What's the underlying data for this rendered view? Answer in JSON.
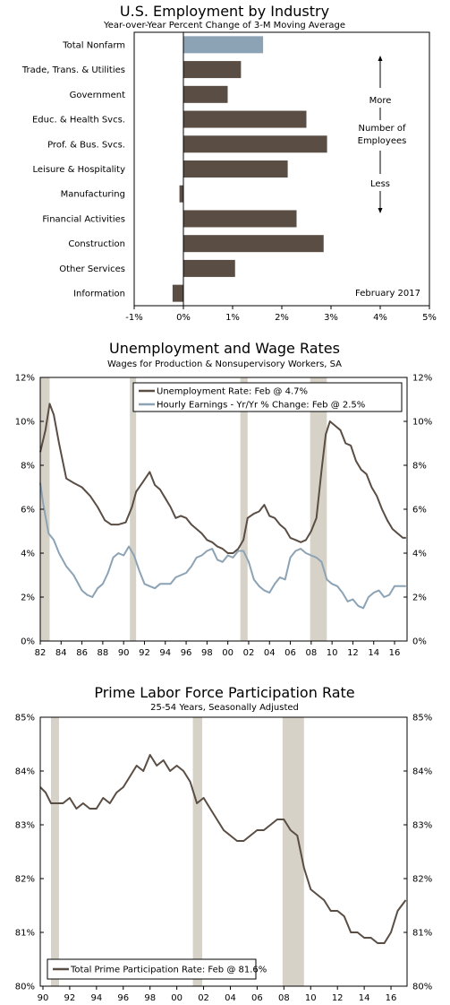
{
  "colors": {
    "bar_dark": "#5a4d44",
    "bar_highlight": "#8ca3b5",
    "line_dark": "#5a4d44",
    "line_blue": "#8ca3b5",
    "recession": "#d7d2c7",
    "axis": "#000000"
  },
  "chart_data": [
    {
      "type": "bar",
      "title": "U.S. Employment by Industry",
      "subtitle": "Year-over-Year Percent Change of 3-M Moving Average",
      "orientation": "horizontal",
      "categories": [
        "Total Nonfarm",
        "Trade, Trans. & Utilities",
        "Government",
        "Educ. & Health Svcs.",
        "Prof. & Bus. Svcs.",
        "Leisure & Hospitality",
        "Manufacturing",
        "Financial Activities",
        "Construction",
        "Other Services",
        "Information"
      ],
      "values": [
        1.62,
        1.17,
        0.9,
        2.5,
        2.92,
        2.12,
        -0.08,
        2.3,
        2.85,
        1.05,
        -0.22
      ],
      "highlight_index": 0,
      "xlim": [
        -1,
        5
      ],
      "x_ticks": [
        -1,
        0,
        1,
        2,
        3,
        4,
        5
      ],
      "x_tick_labels": [
        "-1%",
        "0%",
        "1%",
        "2%",
        "3%",
        "4%",
        "5%"
      ],
      "annotations": {
        "more": "More",
        "middle_line1": "Number of",
        "middle_line2": "Employees",
        "less": "Less",
        "date": "February 2017"
      },
      "grid": false
    },
    {
      "type": "line",
      "title": "Unemployment and Wage Rates",
      "subtitle": "Wages for Production & Nonsupervisory Workers, SA",
      "xlim": [
        1982,
        2017.2
      ],
      "ylim": [
        0,
        12
      ],
      "y_ticks": [
        0,
        2,
        4,
        6,
        8,
        10,
        12
      ],
      "y_tick_labels": [
        "0%",
        "2%",
        "4%",
        "6%",
        "8%",
        "10%",
        "12%"
      ],
      "x_ticks": [
        1982,
        1984,
        1986,
        1988,
        1990,
        1992,
        1994,
        1996,
        1998,
        2000,
        2002,
        2004,
        2006,
        2008,
        2010,
        2012,
        2014,
        2016
      ],
      "x_tick_labels": [
        "82",
        "84",
        "86",
        "88",
        "90",
        "92",
        "94",
        "96",
        "98",
        "00",
        "02",
        "04",
        "06",
        "08",
        "10",
        "12",
        "14",
        "16"
      ],
      "recessions": [
        [
          1982.0,
          1982.9
        ],
        [
          1990.6,
          1991.2
        ],
        [
          2001.2,
          2001.9
        ],
        [
          2007.9,
          2009.5
        ]
      ],
      "legend_position": "top-right",
      "series": [
        {
          "name": "Unemployment Rate: Feb @ 4.7%",
          "color_key": "line_dark",
          "x": [
            1982.0,
            1982.5,
            1982.9,
            1983.3,
            1983.8,
            1984.5,
            1985.2,
            1986.0,
            1986.8,
            1987.5,
            1988.2,
            1988.8,
            1989.5,
            1990.2,
            1990.8,
            1991.2,
            1991.8,
            1992.5,
            1993.0,
            1993.5,
            1994.0,
            1994.5,
            1995.0,
            1995.5,
            1996.0,
            1996.5,
            1997.0,
            1997.5,
            1998.0,
            1998.5,
            1999.0,
            1999.5,
            2000.0,
            2000.5,
            2001.0,
            2001.5,
            2001.9,
            2002.5,
            2003.0,
            2003.5,
            2004.0,
            2004.5,
            2005.0,
            2005.5,
            2006.0,
            2006.5,
            2007.0,
            2007.5,
            2008.0,
            2008.5,
            2009.0,
            2009.4,
            2009.8,
            2010.3,
            2010.8,
            2011.3,
            2011.8,
            2012.3,
            2012.8,
            2013.3,
            2013.8,
            2014.3,
            2014.8,
            2015.3,
            2015.8,
            2016.3,
            2016.8,
            2017.1
          ],
          "y": [
            8.6,
            9.6,
            10.8,
            10.3,
            9.0,
            7.4,
            7.2,
            7.0,
            6.6,
            6.1,
            5.5,
            5.3,
            5.3,
            5.4,
            6.1,
            6.8,
            7.2,
            7.7,
            7.1,
            6.9,
            6.5,
            6.1,
            5.6,
            5.7,
            5.6,
            5.3,
            5.1,
            4.9,
            4.6,
            4.5,
            4.3,
            4.2,
            4.0,
            4.0,
            4.2,
            4.6,
            5.6,
            5.8,
            5.9,
            6.2,
            5.7,
            5.6,
            5.3,
            5.1,
            4.7,
            4.6,
            4.5,
            4.6,
            5.0,
            5.6,
            7.8,
            9.4,
            10.0,
            9.8,
            9.6,
            9.0,
            8.9,
            8.2,
            7.8,
            7.6,
            7.0,
            6.6,
            6.0,
            5.5,
            5.1,
            4.9,
            4.7,
            4.7
          ]
        },
        {
          "name": "Hourly Earnings - Yr/Yr % Change: Feb @ 2.5%",
          "color_key": "line_blue",
          "x": [
            1982.0,
            1982.3,
            1982.8,
            1983.3,
            1983.8,
            1984.5,
            1985.2,
            1986.0,
            1986.5,
            1987.0,
            1987.5,
            1988.0,
            1988.5,
            1989.0,
            1989.5,
            1990.0,
            1990.5,
            1991.0,
            1991.5,
            1992.0,
            1992.5,
            1993.0,
            1993.5,
            1994.0,
            1994.5,
            1995.0,
            1995.5,
            1996.0,
            1996.5,
            1997.0,
            1997.5,
            1998.0,
            1998.5,
            1999.0,
            1999.5,
            2000.0,
            2000.5,
            2001.0,
            2001.5,
            2002.0,
            2002.5,
            2003.0,
            2003.5,
            2004.0,
            2004.5,
            2005.0,
            2005.5,
            2006.0,
            2006.5,
            2007.0,
            2007.5,
            2008.0,
            2008.5,
            2009.0,
            2009.5,
            2010.0,
            2010.5,
            2011.0,
            2011.5,
            2012.0,
            2012.5,
            2013.0,
            2013.5,
            2014.0,
            2014.5,
            2015.0,
            2015.5,
            2016.0,
            2016.5,
            2017.1
          ],
          "y": [
            7.2,
            6.2,
            4.9,
            4.6,
            4.0,
            3.4,
            3.0,
            2.3,
            2.1,
            2.0,
            2.4,
            2.6,
            3.1,
            3.8,
            4.0,
            3.9,
            4.3,
            3.9,
            3.2,
            2.6,
            2.5,
            2.4,
            2.6,
            2.6,
            2.6,
            2.9,
            3.0,
            3.1,
            3.4,
            3.8,
            3.9,
            4.1,
            4.2,
            3.7,
            3.6,
            3.9,
            3.8,
            4.1,
            4.1,
            3.6,
            2.8,
            2.5,
            2.3,
            2.2,
            2.6,
            2.9,
            2.8,
            3.8,
            4.1,
            4.2,
            4.0,
            3.9,
            3.8,
            3.6,
            2.8,
            2.6,
            2.5,
            2.2,
            1.8,
            1.9,
            1.6,
            1.5,
            2.0,
            2.2,
            2.3,
            2.0,
            2.1,
            2.5,
            2.5,
            2.5
          ]
        }
      ]
    },
    {
      "type": "line",
      "title": "Prime Labor Force Participation Rate",
      "subtitle": "25-54 Years, Seasonally Adjusted",
      "xlim": [
        1989.8,
        2017.2
      ],
      "ylim": [
        80,
        85
      ],
      "y_ticks": [
        80,
        81,
        82,
        83,
        84,
        85
      ],
      "y_tick_labels": [
        "80%",
        "81%",
        "82%",
        "83%",
        "84%",
        "85%"
      ],
      "x_ticks": [
        1990,
        1992,
        1994,
        1996,
        1998,
        2000,
        2002,
        2004,
        2006,
        2008,
        2010,
        2012,
        2014,
        2016
      ],
      "x_tick_labels": [
        "90",
        "92",
        "94",
        "96",
        "98",
        "00",
        "02",
        "04",
        "06",
        "08",
        "10",
        "12",
        "14",
        "16"
      ],
      "recessions": [
        [
          1990.6,
          1991.2
        ],
        [
          2001.2,
          2001.9
        ],
        [
          2007.9,
          2009.5
        ]
      ],
      "legend_position": "bottom-left",
      "series": [
        {
          "name": "Total Prime Participation Rate: Feb @ 81.6%",
          "color_key": "line_dark",
          "x": [
            1989.8,
            1990.2,
            1990.6,
            1991.0,
            1991.5,
            1992.0,
            1992.5,
            1993.0,
            1993.5,
            1994.0,
            1994.5,
            1995.0,
            1995.5,
            1996.0,
            1996.5,
            1997.0,
            1997.5,
            1998.0,
            1998.5,
            1999.0,
            1999.5,
            2000.0,
            2000.5,
            2001.0,
            2001.5,
            2002.0,
            2002.5,
            2003.0,
            2003.5,
            2004.0,
            2004.5,
            2005.0,
            2005.5,
            2006.0,
            2006.5,
            2007.0,
            2007.5,
            2008.0,
            2008.5,
            2009.0,
            2009.5,
            2010.0,
            2010.5,
            2011.0,
            2011.5,
            2012.0,
            2012.5,
            2013.0,
            2013.5,
            2014.0,
            2014.5,
            2015.0,
            2015.5,
            2016.0,
            2016.5,
            2017.1
          ],
          "y": [
            83.7,
            83.6,
            83.4,
            83.4,
            83.4,
            83.5,
            83.3,
            83.4,
            83.3,
            83.3,
            83.5,
            83.4,
            83.6,
            83.7,
            83.9,
            84.1,
            84.0,
            84.3,
            84.1,
            84.2,
            84.0,
            84.1,
            84.0,
            83.8,
            83.4,
            83.5,
            83.3,
            83.1,
            82.9,
            82.8,
            82.7,
            82.7,
            82.8,
            82.9,
            82.9,
            83.0,
            83.1,
            83.1,
            82.9,
            82.8,
            82.2,
            81.8,
            81.7,
            81.6,
            81.4,
            81.4,
            81.3,
            81.0,
            81.0,
            80.9,
            80.9,
            80.8,
            80.8,
            81.0,
            81.4,
            81.6
          ]
        }
      ]
    }
  ]
}
